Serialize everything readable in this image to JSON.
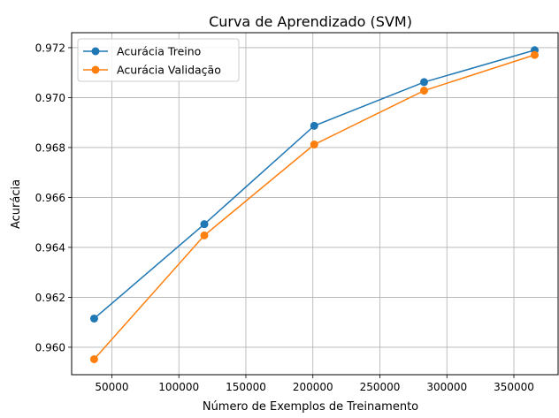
{
  "chart_data": {
    "type": "line",
    "title": "Curva de Aprendizado (SVM)",
    "xlabel": "Número de Exemplos de Treinamento",
    "ylabel": "Acurácia",
    "xlim": [
      20000,
      383000
    ],
    "ylim": [
      0.9589,
      0.9726
    ],
    "xticks": [
      50000,
      100000,
      150000,
      200000,
      250000,
      300000,
      350000
    ],
    "yticks": [
      0.96,
      0.962,
      0.964,
      0.966,
      0.968,
      0.97,
      0.972
    ],
    "xtick_labels": [
      "50000",
      "100000",
      "150000",
      "200000",
      "250000",
      "300000",
      "350000"
    ],
    "ytick_labels": [
      "0.960",
      "0.962",
      "0.964",
      "0.966",
      "0.968",
      "0.970",
      "0.972"
    ],
    "grid": true,
    "legend_position": "upper-left",
    "x": [
      36800,
      119000,
      201000,
      283000,
      365500
    ],
    "series": [
      {
        "name": "Acurácia Treino",
        "color": "#1f77b4",
        "marker": "circle",
        "values": [
          0.96115,
          0.96493,
          0.96887,
          0.97062,
          0.9719
        ]
      },
      {
        "name": "Acurácia Validação",
        "color": "#ff7f0e",
        "marker": "circle",
        "values": [
          0.95952,
          0.96448,
          0.96812,
          0.97028,
          0.97171
        ]
      }
    ]
  }
}
